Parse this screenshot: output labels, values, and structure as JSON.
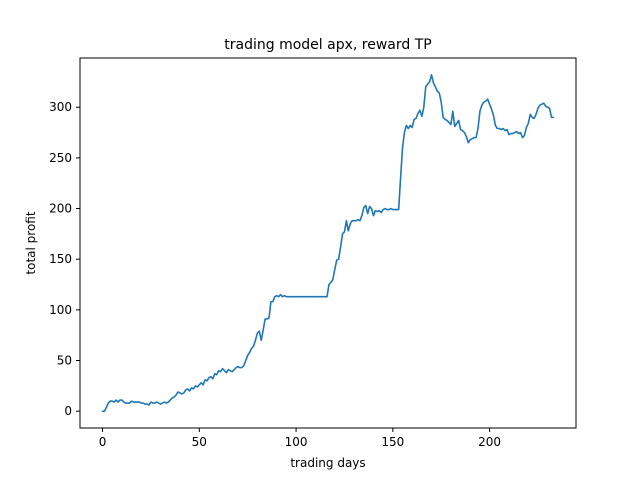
{
  "chart_data": {
    "type": "line",
    "title": "trading model apx, reward TP",
    "xlabel": "trading days",
    "ylabel": "total profit",
    "xlim": [
      -11.65,
      244.65
    ],
    "ylim": [
      -16.6,
      348.6
    ],
    "xticks": [
      0,
      50,
      100,
      150,
      200
    ],
    "yticks": [
      0,
      50,
      100,
      150,
      200,
      250,
      300
    ],
    "grid": false,
    "legend": "none",
    "series": [
      {
        "color": "#1f77b4",
        "points": [
          [
            0,
            0
          ],
          [
            1,
            0
          ],
          [
            2,
            4
          ],
          [
            3,
            8
          ],
          [
            4,
            10
          ],
          [
            5,
            10
          ],
          [
            6,
            9
          ],
          [
            7,
            11
          ],
          [
            8,
            9
          ],
          [
            9,
            11
          ],
          [
            10,
            11
          ],
          [
            11,
            9
          ],
          [
            12,
            8
          ],
          [
            13,
            8
          ],
          [
            14,
            8
          ],
          [
            15,
            10
          ],
          [
            16,
            9
          ],
          [
            17,
            9
          ],
          [
            18,
            9
          ],
          [
            19,
            9
          ],
          [
            20,
            8
          ],
          [
            21,
            8
          ],
          [
            22,
            7
          ],
          [
            23,
            7
          ],
          [
            24,
            6
          ],
          [
            25,
            9
          ],
          [
            26,
            8
          ],
          [
            27,
            8
          ],
          [
            28,
            9
          ],
          [
            29,
            8
          ],
          [
            30,
            7
          ],
          [
            31,
            8
          ],
          [
            32,
            9
          ],
          [
            33,
            8
          ],
          [
            34,
            9
          ],
          [
            35,
            11
          ],
          [
            36,
            13
          ],
          [
            37,
            14
          ],
          [
            38,
            16
          ],
          [
            39,
            19
          ],
          [
            40,
            18
          ],
          [
            41,
            17
          ],
          [
            42,
            18
          ],
          [
            43,
            21
          ],
          [
            44,
            22
          ],
          [
            45,
            20
          ],
          [
            46,
            23
          ],
          [
            47,
            22
          ],
          [
            48,
            25
          ],
          [
            49,
            24
          ],
          [
            50,
            26
          ],
          [
            51,
            28
          ],
          [
            52,
            26
          ],
          [
            53,
            31
          ],
          [
            54,
            30
          ],
          [
            55,
            33
          ],
          [
            56,
            34
          ],
          [
            57,
            32
          ],
          [
            58,
            37
          ],
          [
            59,
            36
          ],
          [
            60,
            40
          ],
          [
            61,
            39
          ],
          [
            62,
            42
          ],
          [
            63,
            40
          ],
          [
            64,
            38
          ],
          [
            65,
            41
          ],
          [
            66,
            40
          ],
          [
            67,
            39
          ],
          [
            68,
            41
          ],
          [
            69,
            43
          ],
          [
            70,
            44
          ],
          [
            71,
            43
          ],
          [
            72,
            43
          ],
          [
            73,
            45
          ],
          [
            74,
            50
          ],
          [
            75,
            55
          ],
          [
            76,
            58
          ],
          [
            77,
            62
          ],
          [
            78,
            64
          ],
          [
            79,
            70
          ],
          [
            80,
            77
          ],
          [
            81,
            79
          ],
          [
            82,
            70
          ],
          [
            83,
            80
          ],
          [
            84,
            91
          ],
          [
            85,
            91
          ],
          [
            86,
            92
          ],
          [
            87,
            108
          ],
          [
            88,
            108
          ],
          [
            89,
            113
          ],
          [
            90,
            114
          ],
          [
            91,
            113
          ],
          [
            92,
            115
          ],
          [
            93,
            113
          ],
          [
            94,
            114
          ],
          [
            95,
            113
          ],
          [
            96,
            113
          ],
          [
            97,
            113
          ],
          [
            100,
            113
          ],
          [
            105,
            113
          ],
          [
            110,
            113
          ],
          [
            116,
            113
          ],
          [
            117,
            125
          ],
          [
            118,
            127
          ],
          [
            119,
            130
          ],
          [
            120,
            140
          ],
          [
            121,
            149
          ],
          [
            122,
            150
          ],
          [
            123,
            162
          ],
          [
            124,
            175
          ],
          [
            125,
            177
          ],
          [
            126,
            188
          ],
          [
            127,
            178
          ],
          [
            128,
            185
          ],
          [
            129,
            188
          ],
          [
            130,
            188
          ],
          [
            131,
            188
          ],
          [
            132,
            189
          ],
          [
            133,
            188
          ],
          [
            134,
            193
          ],
          [
            135,
            201
          ],
          [
            136,
            203
          ],
          [
            137,
            195
          ],
          [
            138,
            202
          ],
          [
            139,
            200
          ],
          [
            140,
            193
          ],
          [
            141,
            198
          ],
          [
            142,
            197
          ],
          [
            143,
            198
          ],
          [
            144,
            196
          ],
          [
            145,
            199
          ],
          [
            146,
            200
          ],
          [
            147,
            199
          ],
          [
            148,
            199
          ],
          [
            149,
            200
          ],
          [
            150,
            199
          ],
          [
            151,
            199
          ],
          [
            152,
            199
          ],
          [
            153,
            199
          ],
          [
            154,
            230
          ],
          [
            155,
            260
          ],
          [
            156,
            275
          ],
          [
            157,
            282
          ],
          [
            158,
            279
          ],
          [
            159,
            282
          ],
          [
            160,
            280
          ],
          [
            161,
            288
          ],
          [
            162,
            289
          ],
          [
            163,
            294
          ],
          [
            164,
            297
          ],
          [
            165,
            291
          ],
          [
            166,
            300
          ],
          [
            167,
            320
          ],
          [
            168,
            323
          ],
          [
            169,
            325
          ],
          [
            170,
            332
          ],
          [
            171,
            324
          ],
          [
            172,
            320
          ],
          [
            173,
            316
          ],
          [
            174,
            314
          ],
          [
            175,
            305
          ],
          [
            176,
            290
          ],
          [
            177,
            288
          ],
          [
            178,
            287
          ],
          [
            179,
            285
          ],
          [
            180,
            283
          ],
          [
            181,
            296
          ],
          [
            182,
            281
          ],
          [
            183,
            284
          ],
          [
            184,
            287
          ],
          [
            185,
            278
          ],
          [
            186,
            277
          ],
          [
            187,
            275
          ],
          [
            188,
            271
          ],
          [
            189,
            265
          ],
          [
            190,
            268
          ],
          [
            191,
            269
          ],
          [
            192,
            270
          ],
          [
            193,
            270
          ],
          [
            194,
            279
          ],
          [
            195,
            296
          ],
          [
            196,
            302
          ],
          [
            197,
            305
          ],
          [
            198,
            306
          ],
          [
            199,
            308
          ],
          [
            200,
            303
          ],
          [
            201,
            298
          ],
          [
            202,
            292
          ],
          [
            203,
            282
          ],
          [
            204,
            279
          ],
          [
            205,
            279
          ],
          [
            206,
            278
          ],
          [
            207,
            279
          ],
          [
            208,
            277
          ],
          [
            209,
            278
          ],
          [
            210,
            273
          ],
          [
            211,
            274
          ],
          [
            212,
            274
          ],
          [
            213,
            275
          ],
          [
            214,
            276
          ],
          [
            215,
            274
          ],
          [
            216,
            275
          ],
          [
            217,
            270
          ],
          [
            218,
            272
          ],
          [
            219,
            280
          ],
          [
            220,
            284
          ],
          [
            221,
            293
          ],
          [
            222,
            290
          ],
          [
            223,
            289
          ],
          [
            224,
            293
          ],
          [
            225,
            299
          ],
          [
            226,
            302
          ],
          [
            227,
            303
          ],
          [
            228,
            304
          ],
          [
            229,
            301
          ],
          [
            230,
            300
          ],
          [
            231,
            299
          ],
          [
            232,
            290
          ],
          [
            233,
            290
          ]
        ]
      }
    ]
  }
}
